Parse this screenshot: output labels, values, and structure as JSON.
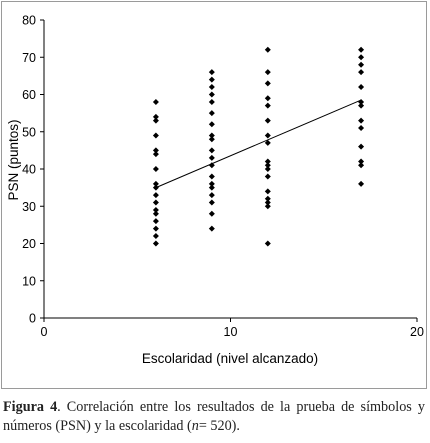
{
  "chart_data": {
    "type": "scatter",
    "title": "",
    "xlabel": "Escolaridad (nivel alcanzado)",
    "ylabel": "PSN (puntos)",
    "xlim": [
      0,
      20
    ],
    "ylim": [
      0,
      80
    ],
    "x_ticks": [
      0,
      10,
      20
    ],
    "y_ticks": [
      0,
      10,
      20,
      30,
      40,
      50,
      60,
      70,
      80
    ],
    "grid": false,
    "legend": "none",
    "marker": "diamond",
    "marker_color": "#000000",
    "points": [
      [
        6,
        58
      ],
      [
        6,
        54
      ],
      [
        6,
        53
      ],
      [
        6,
        49
      ],
      [
        6,
        45
      ],
      [
        6,
        44
      ],
      [
        6,
        40
      ],
      [
        6,
        36
      ],
      [
        6,
        35
      ],
      [
        6,
        33
      ],
      [
        6,
        31
      ],
      [
        6,
        29
      ],
      [
        6,
        28
      ],
      [
        6,
        26
      ],
      [
        6,
        24
      ],
      [
        6,
        22
      ],
      [
        6,
        20
      ],
      [
        9,
        66
      ],
      [
        9,
        64
      ],
      [
        9,
        62
      ],
      [
        9,
        60
      ],
      [
        9,
        58
      ],
      [
        9,
        55
      ],
      [
        9,
        52
      ],
      [
        9,
        49
      ],
      [
        9,
        48
      ],
      [
        9,
        45
      ],
      [
        9,
        43
      ],
      [
        9,
        41
      ],
      [
        9,
        38
      ],
      [
        9,
        36
      ],
      [
        9,
        35
      ],
      [
        9,
        33
      ],
      [
        9,
        31
      ],
      [
        9,
        28
      ],
      [
        9,
        24
      ],
      [
        12,
        72
      ],
      [
        12,
        66
      ],
      [
        12,
        63
      ],
      [
        12,
        59
      ],
      [
        12,
        57
      ],
      [
        12,
        53
      ],
      [
        12,
        49
      ],
      [
        12,
        47
      ],
      [
        12,
        42
      ],
      [
        12,
        41
      ],
      [
        12,
        40
      ],
      [
        12,
        38
      ],
      [
        12,
        34
      ],
      [
        12,
        32
      ],
      [
        12,
        31
      ],
      [
        12,
        30
      ],
      [
        12,
        20
      ],
      [
        17,
        72
      ],
      [
        17,
        70
      ],
      [
        17,
        68
      ],
      [
        17,
        66
      ],
      [
        17,
        62
      ],
      [
        17,
        58
      ],
      [
        17,
        57
      ],
      [
        17,
        53
      ],
      [
        17,
        51
      ],
      [
        17,
        46
      ],
      [
        17,
        42
      ],
      [
        17,
        41
      ],
      [
        17,
        36
      ]
    ],
    "trendline": {
      "x": [
        6,
        17
      ],
      "y": [
        35,
        58.5
      ]
    }
  },
  "caption": {
    "label": "Figura 4",
    "text_1": ". Correlación entre los resultados de la prueba de símbolos y números (PSN) y la escolaridad (",
    "n_italic": "n",
    "text_2": "= 520)."
  }
}
